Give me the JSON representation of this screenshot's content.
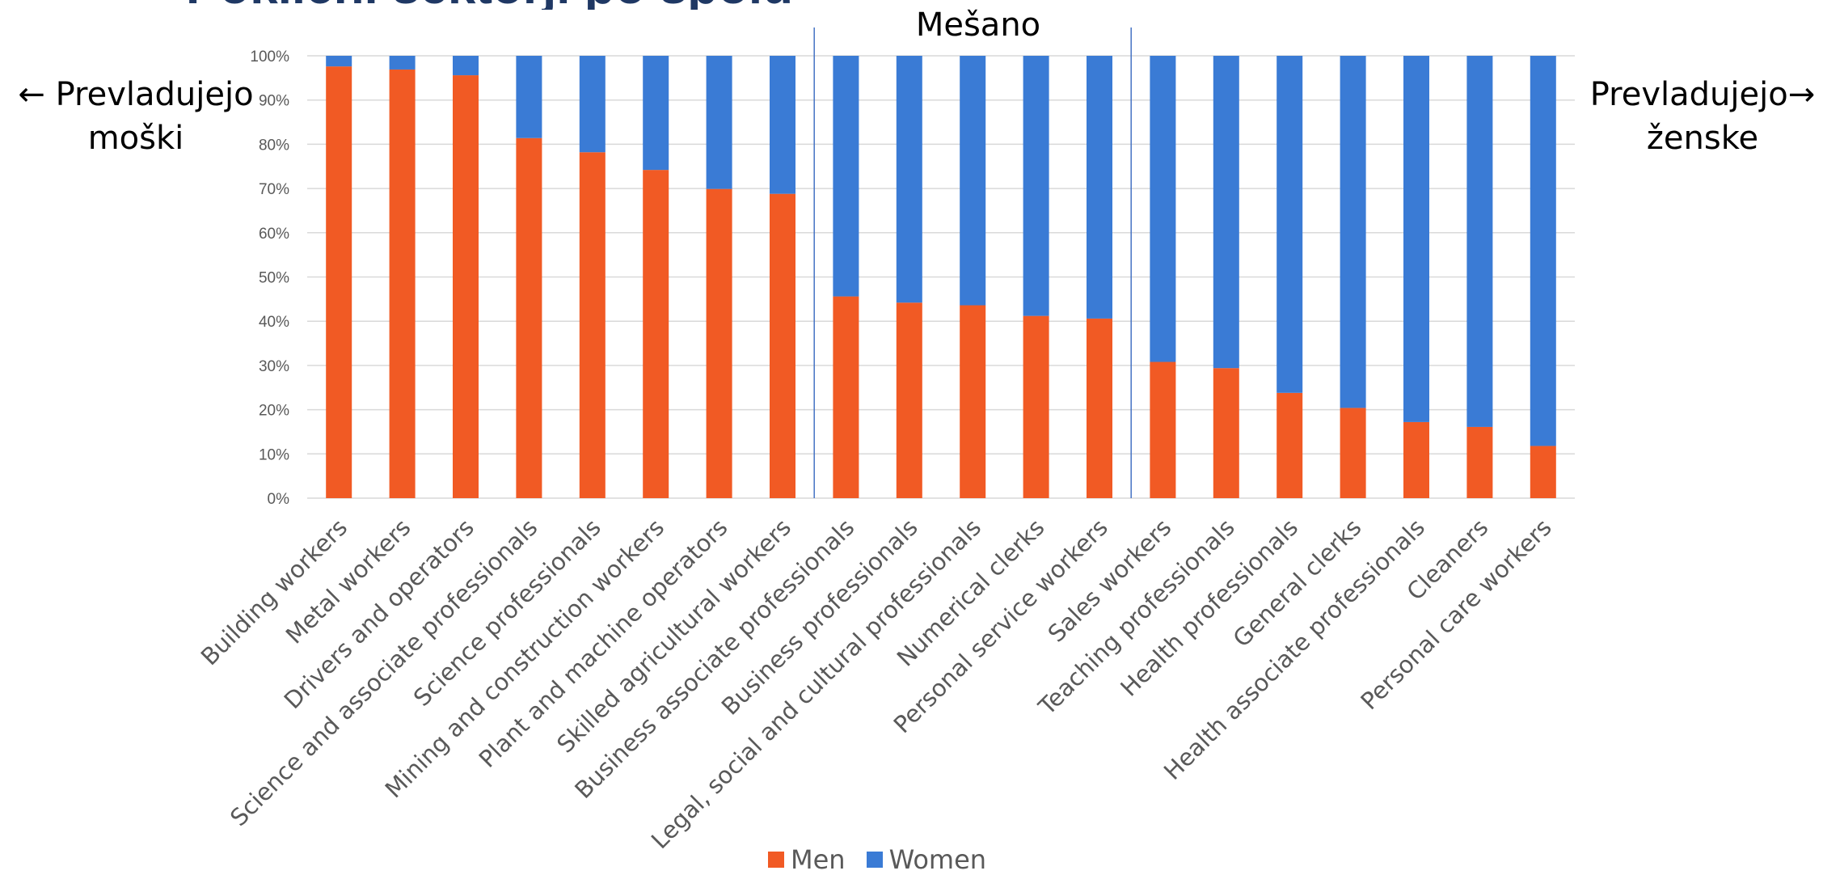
{
  "title_fragment": "Poklicni sektorji po spolu",
  "side_labels": {
    "left_line1": "← Prevladujejo",
    "left_line2": "moški",
    "right_line1": "Prevladujejo→",
    "right_line2": "ženske",
    "middle": "Mešano"
  },
  "colors": {
    "men": "#F15A24",
    "women": "#3A7BD5",
    "grid": "#D9D9D9",
    "divider": "#4472C4",
    "axis_text": "#595959"
  },
  "chart_data": {
    "type": "bar",
    "stacked": true,
    "percent": true,
    "categories": [
      "Building workers",
      "Metal workers",
      "Drivers and operators",
      "Science and associate professionals",
      "Science professionals",
      "Mining and construction workers",
      "Plant and machine operators",
      "Skilled agricultural workers",
      "Business associate professionals",
      "Business professionals",
      "Legal, social and cultural professionals",
      "Numerical clerks",
      "Personal service workers",
      "Sales workers",
      "Teaching professionals",
      "Health professionals",
      "General clerks",
      "Health associate professionals",
      "Cleaners",
      "Personal care workers"
    ],
    "series": [
      {
        "name": "Men",
        "values": [
          97.6,
          96.9,
          95.6,
          81.4,
          78.2,
          74.2,
          69.9,
          68.8,
          45.6,
          44.2,
          43.6,
          41.2,
          40.6,
          30.8,
          29.4,
          23.8,
          20.4,
          17.2,
          16.1,
          11.8
        ]
      },
      {
        "name": "Women",
        "values": [
          2.4,
          3.1,
          4.4,
          18.6,
          21.8,
          25.8,
          30.1,
          31.2,
          54.4,
          55.8,
          56.4,
          58.8,
          59.4,
          69.2,
          70.6,
          76.2,
          79.6,
          82.8,
          83.9,
          88.2
        ]
      }
    ],
    "yticks": [
      "0%",
      "10%",
      "20%",
      "30%",
      "40%",
      "50%",
      "60%",
      "70%",
      "80%",
      "90%",
      "100%"
    ],
    "ylim": [
      0,
      100
    ],
    "grid": true,
    "legend": "bottom-center",
    "dividers_after_category_index": [
      7,
      12
    ]
  }
}
